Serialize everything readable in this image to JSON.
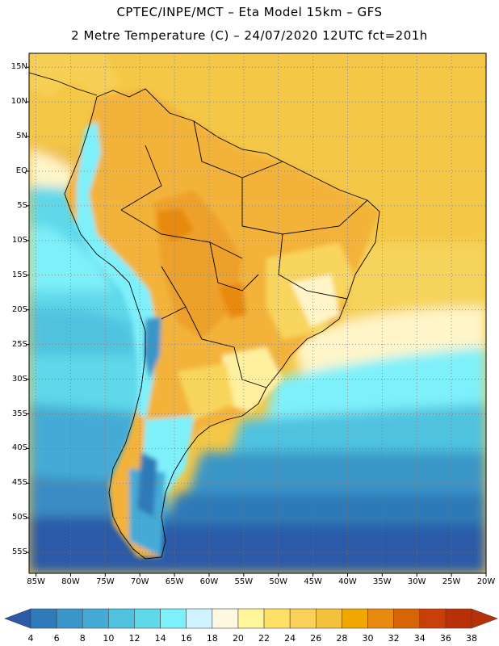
{
  "title": {
    "line1": "CPTEC/INPE/MCT –   Eta Model 15km – GFS",
    "line2": "2 Metre Temperature (C) – 24/07/2020 12UTC fct=201h"
  },
  "axes": {
    "lat_labels": [
      "15N",
      "10N",
      "5N",
      "EQ",
      "5S",
      "10S",
      "15S",
      "20S",
      "25S",
      "30S",
      "35S",
      "40S",
      "45S",
      "50S",
      "55S"
    ],
    "lat_values": [
      15,
      10,
      5,
      0,
      -5,
      -10,
      -15,
      -20,
      -25,
      -30,
      -35,
      -40,
      -45,
      -50,
      -55
    ],
    "lon_labels": [
      "85W",
      "80W",
      "75W",
      "70W",
      "65W",
      "60W",
      "55W",
      "50W",
      "45W",
      "40W",
      "35W",
      "30W",
      "25W",
      "20W"
    ],
    "lon_values": [
      -85,
      -80,
      -75,
      -70,
      -65,
      -60,
      -55,
      -50,
      -45,
      -40,
      -35,
      -30,
      -25,
      -20
    ],
    "lat_range": [
      -58,
      17
    ],
    "lon_range": [
      -86,
      -20
    ]
  },
  "colorbar": {
    "labels": [
      "4",
      "6",
      "8",
      "10",
      "12",
      "14",
      "16",
      "18",
      "20",
      "22",
      "24",
      "26",
      "28",
      "30",
      "32",
      "34",
      "36",
      "38"
    ],
    "colors": [
      "#2a5aa8",
      "#2f7ab8",
      "#3a96c8",
      "#45abd6",
      "#50c2e0",
      "#5fd8ea",
      "#7ef0fa",
      "#cff4ff",
      "#fff8e0",
      "#fff59a",
      "#ffe066",
      "#fad05a",
      "#f4c13c",
      "#f0a800",
      "#e88a10",
      "#d86408",
      "#c84008",
      "#b83008"
    ]
  },
  "map": {
    "region": "South America",
    "field": "2 metre temperature"
  }
}
